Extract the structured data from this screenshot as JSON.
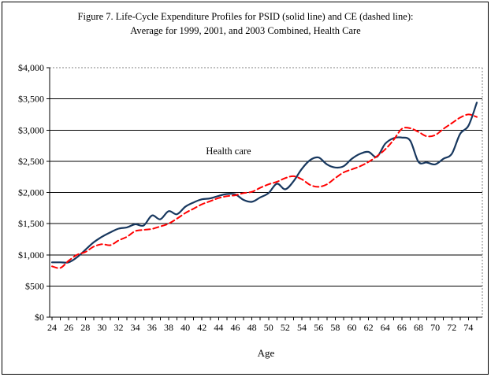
{
  "figure": {
    "title_line1": "Figure 7. Life-Cycle Expenditure Profiles for PSID (solid line) and CE (dashed line):",
    "title_line2": "Average for 1999, 2001, and 2003 Combined, Health Care",
    "annotation": "Health care",
    "x_axis_title": "Age"
  },
  "colors": {
    "psid_line": "#17375E",
    "ce_line": "#FF0000",
    "gridline": "#000000",
    "plot_border_dotted": "#808080"
  },
  "chart_data": {
    "type": "line",
    "title": "Figure 7. Life-Cycle Expenditure Profiles for PSID (solid line) and CE (dashed line): Average for 1999, 2001, and 2003 Combined, Health Care",
    "xlabel": "Age",
    "ylabel": "",
    "ylim": [
      0,
      4000
    ],
    "ytick_step": 500,
    "ytick_labels": [
      "$0",
      "$500",
      "$1,000",
      "$1,500",
      "$2,000",
      "$2,500",
      "$3,000",
      "$3,500",
      "$4,000"
    ],
    "xtick_labels": [
      "24",
      "26",
      "28",
      "30",
      "32",
      "34",
      "36",
      "38",
      "40",
      "42",
      "44",
      "46",
      "48",
      "50",
      "52",
      "54",
      "56",
      "58",
      "60",
      "62",
      "64",
      "66",
      "68",
      "70",
      "72",
      "74"
    ],
    "grid": "horizontal",
    "legend_position": "none",
    "annotation": "Health care",
    "x": [
      24,
      25,
      26,
      27,
      28,
      29,
      30,
      31,
      32,
      33,
      34,
      35,
      36,
      37,
      38,
      39,
      40,
      41,
      42,
      43,
      44,
      45,
      46,
      47,
      48,
      49,
      50,
      51,
      52,
      53,
      54,
      55,
      56,
      57,
      58,
      59,
      60,
      61,
      62,
      63,
      64,
      65,
      66,
      67,
      68,
      69,
      70,
      71,
      72,
      73,
      74,
      75
    ],
    "series": [
      {
        "name": "PSID",
        "style": "solid",
        "color": "#17375E",
        "values": [
          880,
          880,
          880,
          960,
          1080,
          1200,
          1290,
          1360,
          1420,
          1440,
          1490,
          1470,
          1630,
          1570,
          1700,
          1650,
          1770,
          1840,
          1890,
          1905,
          1945,
          1975,
          1970,
          1880,
          1850,
          1920,
          1990,
          2140,
          2050,
          2180,
          2380,
          2520,
          2560,
          2450,
          2400,
          2420,
          2540,
          2620,
          2650,
          2570,
          2780,
          2870,
          2880,
          2830,
          2490,
          2480,
          2450,
          2540,
          2620,
          2940,
          3070,
          3440
        ]
      },
      {
        "name": "CE",
        "style": "dashed",
        "color": "#FF0000",
        "values": [
          815,
          790,
          905,
          1000,
          1045,
          1130,
          1170,
          1155,
          1230,
          1290,
          1380,
          1400,
          1415,
          1455,
          1500,
          1580,
          1670,
          1740,
          1810,
          1860,
          1910,
          1940,
          1955,
          1990,
          2010,
          2075,
          2130,
          2170,
          2230,
          2260,
          2210,
          2120,
          2090,
          2130,
          2230,
          2320,
          2370,
          2420,
          2490,
          2580,
          2690,
          2840,
          3020,
          3030,
          2970,
          2900,
          2920,
          3020,
          3110,
          3200,
          3250,
          3210
        ]
      }
    ]
  }
}
